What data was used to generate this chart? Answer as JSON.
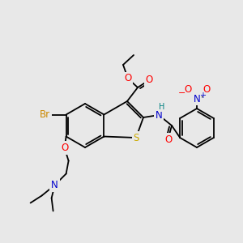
{
  "bg_color": "#e8e8e8",
  "atom_colors": {
    "O": "#ff0000",
    "N": "#0000cd",
    "S": "#ccaa00",
    "Br": "#cc8800",
    "H": "#008080",
    "plus": "#0000cd",
    "minus": "#ff0000"
  },
  "font_size_atom": 8.5,
  "font_size_small": 7.0,
  "lw": 1.3
}
